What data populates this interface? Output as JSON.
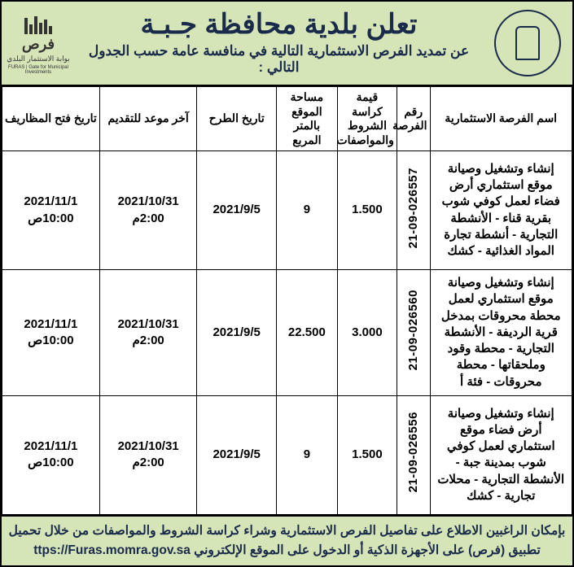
{
  "header": {
    "title_main": "تعلن بلدية محافظة جـبـة",
    "title_sub": "عن تمديد الفرص الاستثمارية التالية في منافسة عامة حسب الجدول التالي :",
    "left_logo_word": "فرص",
    "left_logo_caption_ar": "بوابة الاستثمار البلدي",
    "left_logo_caption_en": "FURAS | Gate for Municipal Investments"
  },
  "colors": {
    "header_bg": "#d6e5b8",
    "title_color": "#1a2a4a",
    "border": "#000000"
  },
  "columns": [
    "اسم الفرصة الاستثمارية",
    "رقم الفرصة",
    "قيمة كراسة الشروط والمواصفات",
    "مساحة الموقع بالمتر المربع",
    "تاريخ الطرح",
    "آخر موعد للتقديم",
    "تاريخ فتح المظاريف"
  ],
  "rows": [
    {
      "name": "إنشاء وتشغيل وصيانة موقع استثماري أرض فضاء لعمل كوفي شوب بقرية قناء - الأنشطة التجارية - أنشطة تجارة المواد الغذائية - كشك",
      "number": "21-09-026557",
      "price": "1.500",
      "area": "9",
      "offer_date": "2021/9/5",
      "deadline_date": "2021/10/31",
      "deadline_time": "2:00م",
      "open_date": "2021/11/1",
      "open_time": "10:00ص"
    },
    {
      "name": "إنشاء وتشغيل وصيانة موقع استثماري لعمل محطة محروقات بمدخل قرية الرديفة - الأنشطة التجارية - محطة وقود وملحقاتها - محطة محروقات - فئة أ",
      "number": "21-09-026560",
      "price": "3.000",
      "area": "22.500",
      "offer_date": "2021/9/5",
      "deadline_date": "2021/10/31",
      "deadline_time": "2:00م",
      "open_date": "2021/11/1",
      "open_time": "10:00ص"
    },
    {
      "name": "إنشاء وتشغيل وصيانة أرض فضاء موقع استثماري لعمل كوفي شوب بمدينة جبة - الأنشطة التجارية - محلات تجارية - كشك",
      "number": "21-09-026556",
      "price": "1.500",
      "area": "9",
      "offer_date": "2021/9/5",
      "deadline_date": "2021/10/31",
      "deadline_time": "2:00م",
      "open_date": "2021/11/1",
      "open_time": "10:00ص"
    }
  ],
  "footer": {
    "line1": "بإمكان الراغبين الاطلاع على تفاصيل الفرص الاستثمارية وشراء كراسة الشروط والمواصفات من خلال تحميل",
    "line2_prefix": "تطبيق (فرص) على الأجهزة الذكية أو الدخول على الموقع الإلكتروني",
    "url": "ttps://Furas.momra.gov.sa"
  }
}
